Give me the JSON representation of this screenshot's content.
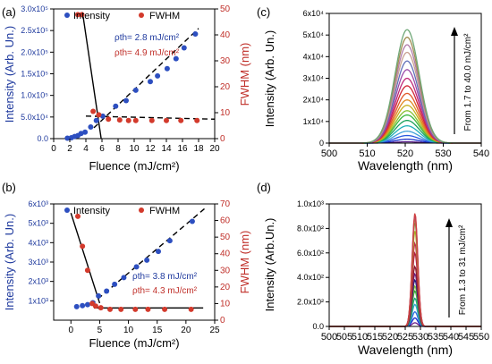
{
  "chart_data": [
    {
      "panel": "(a)",
      "type": "scatter",
      "x_label": "Fluence (mJ/cm²)",
      "x_ticks": [
        0,
        2,
        4,
        6,
        8,
        10,
        12,
        14,
        16,
        18,
        20
      ],
      "xlim": [
        0,
        20
      ],
      "y_left": {
        "label": "Intensity (Arb. Un.)",
        "ylim": [
          0,
          300000
        ],
        "ticks": [
          0,
          50000,
          100000,
          150000,
          200000,
          250000,
          300000
        ],
        "tick_labels": [
          "0.0",
          "5.0x10⁴",
          "1.0x10⁵",
          "1.5x10⁵",
          "2.0x10⁵",
          "2.5x10⁵",
          "3.0x10⁵"
        ],
        "color": "#1f3a9e"
      },
      "y_right": {
        "label": "FWHM (nm)",
        "ylim": [
          0,
          50
        ],
        "ticks": [
          0,
          10,
          20,
          30,
          40,
          50
        ],
        "tick_labels": [
          "0",
          "10",
          "20",
          "30",
          "40",
          "50"
        ],
        "color": "#c0302a"
      },
      "legend": [
        "Intensity",
        "FWHM"
      ],
      "legend_position": "top",
      "annotations": [
        {
          "text": "ρth= 2.8 mJ/cm²",
          "color": "#1f3a9e"
        },
        {
          "text": "ρth= 4.9 mJ/cm²",
          "color": "#c0302a"
        }
      ],
      "series": [
        {
          "name": "Intensity",
          "axis": "left",
          "marker": "circle",
          "color": "#2d4fc0",
          "x": [
            1.7,
            2.2,
            2.6,
            3.0,
            3.4,
            3.9,
            4.6,
            5.3,
            6.1,
            7.7,
            9.0,
            10.2,
            12.0,
            12.9,
            14.1,
            15.2,
            16.2,
            17.6
          ],
          "y": [
            1000,
            2000,
            5000,
            7000,
            12000,
            15000,
            27000,
            42000,
            52000,
            75000,
            88000,
            112000,
            132000,
            145000,
            162000,
            185000,
            210000,
            242000
          ]
        },
        {
          "name": "FWHM",
          "axis": "right",
          "marker": "circle",
          "color": "#d33a2c",
          "x": [
            3.0,
            3.5,
            4.9,
            5.6,
            6.8,
            8.2,
            9.3,
            10.2,
            12.2,
            14.0,
            15.8,
            17.8
          ],
          "y": [
            47.8,
            47.8,
            10.5,
            9.2,
            7.5,
            7.2,
            7.0,
            7.0,
            7.0,
            7.0,
            7.0,
            7.0
          ]
        }
      ],
      "fit_lines": [
        {
          "axis": "left",
          "style": "dashed",
          "x": [
            5.0,
            18.0
          ],
          "y": [
            25000,
            255000
          ]
        },
        {
          "axis": "left",
          "style": "solid",
          "x": [
            3.6,
            5.9
          ],
          "y": [
            290000,
            0
          ]
        },
        {
          "axis": "right",
          "style": "dashed",
          "x": [
            4.0,
            20.0
          ],
          "y": [
            8.7,
            7.5
          ]
        }
      ]
    },
    {
      "panel": "(b)",
      "type": "scatter",
      "x_label": "Fluence (mJ/cm²)",
      "x_ticks": [
        0,
        5,
        10,
        15,
        20,
        25
      ],
      "xlim": [
        -3,
        25
      ],
      "y_left": {
        "label": "Intensity (Arb. Un.)",
        "ylim": [
          0,
          6000
        ],
        "ticks": [
          1000,
          2000,
          3000,
          4000,
          5000,
          6000
        ],
        "tick_labels": [
          "1x10³",
          "2x10³",
          "3x10³",
          "4x10³",
          "5x10³",
          "6x10³"
        ],
        "color": "#1f3a9e"
      },
      "y_right": {
        "label": "FWHM (nm)",
        "ylim": [
          0,
          70
        ],
        "ticks": [
          0,
          10,
          20,
          30,
          40,
          50,
          60,
          70
        ],
        "tick_labels": [
          "0",
          "10",
          "20",
          "30",
          "40",
          "50",
          "60",
          "70"
        ],
        "color": "#c0302a"
      },
      "legend": [
        "Intensity",
        "FWHM"
      ],
      "legend_position": "top",
      "annotations": [
        {
          "text": "ρth= 3.8 mJ/cm²",
          "color": "#1f3a9e"
        },
        {
          "text": "ρth= 4.3 mJ/cm²",
          "color": "#c0302a"
        }
      ],
      "series": [
        {
          "name": "Intensity",
          "axis": "left",
          "marker": "circle",
          "color": "#2d4fc0",
          "x": [
            1.0,
            2.0,
            2.9,
            3.8,
            4.8,
            6.2,
            7.6,
            9.2,
            11.4,
            13.2,
            15.2,
            17.2,
            21.1
          ],
          "y": [
            700,
            750,
            800,
            900,
            1250,
            1500,
            1850,
            2200,
            2750,
            3100,
            3550,
            4100,
            5100
          ]
        },
        {
          "name": "FWHM",
          "axis": "right",
          "marker": "circle",
          "color": "#d33a2c",
          "x": [
            1.2,
            2.0,
            2.9,
            3.7,
            4.3,
            5.2,
            6.8,
            8.7,
            11.2,
            13.4,
            16.3,
            20.9
          ],
          "y": [
            62.5,
            44.5,
            30.0,
            10.0,
            8.5,
            7.5,
            6.5,
            6.5,
            6.5,
            6.5,
            6.5,
            6.5
          ]
        }
      ],
      "fit_lines": [
        {
          "axis": "left",
          "style": "dashed",
          "x": [
            3.5,
            23.5
          ],
          "y": [
            800,
            5820
          ]
        },
        {
          "axis": "left",
          "style": "solid",
          "x": [
            0.0,
            5.0
          ],
          "y": [
            5530,
            880
          ]
        },
        {
          "axis": "left",
          "style": "solid",
          "x": [
            4.0,
            23.0
          ],
          "y": [
            630,
            630
          ]
        }
      ]
    },
    {
      "panel": "(c)",
      "type": "line",
      "x_label": "Wavelength (nm)",
      "y_label": "Intensity (Arb. Un.)",
      "xlim": [
        500,
        540
      ],
      "x_ticks": [
        500,
        510,
        520,
        530,
        540
      ],
      "ylim": [
        0,
        60000
      ],
      "y_ticks": [
        0,
        10000,
        20000,
        30000,
        40000,
        50000,
        60000
      ],
      "y_tick_labels": [
        "0",
        "1x10⁴",
        "2x10⁴",
        "3x10⁴",
        "4x10⁴",
        "5x10⁴",
        "6x10⁴"
      ],
      "annotation": "From 1.7 to 40.0 mJ/cm²",
      "peak_center": 520.5,
      "peak_fwhm": 7.5,
      "series_peaks": [
        600,
        1800,
        3500,
        5500,
        8000,
        10500,
        13000,
        15000,
        17500,
        20000,
        23000,
        26500,
        30000,
        34000,
        38000,
        42000,
        45500,
        49000,
        52500
      ],
      "series_colors": [
        "#5a1e8c",
        "#1a2fc8",
        "#2858e0",
        "#40a0d8",
        "#20b0b8",
        "#1aa05a",
        "#3cb83c",
        "#86c030",
        "#c8b020",
        "#e08820",
        "#e05828",
        "#d02838",
        "#c02878",
        "#9a4aa8",
        "#6070b8",
        "#c8a090",
        "#b07aa8",
        "#a08c50",
        "#70a878"
      ]
    },
    {
      "panel": "(d)",
      "type": "line",
      "x_label": "Wavelength (nm)",
      "y_label": "Intensity (Arb.Un.)",
      "xlim": [
        500,
        550
      ],
      "x_ticks": [
        500,
        505,
        510,
        515,
        520,
        525,
        530,
        535,
        540,
        545,
        550
      ],
      "ylim": [
        0,
        1000
      ],
      "y_ticks": [
        0,
        200,
        400,
        600,
        800,
        1000
      ],
      "y_tick_labels": [
        "0.0",
        "2.0x10²",
        "4.0x10²",
        "6.0x10²",
        "8.0x10²",
        "1.0x10³"
      ],
      "annotation": "From 1.3 to 31 mJ/cm²",
      "peak_center": 528.2,
      "peak_fwhm": 2.2,
      "series_peaks": [
        30,
        70,
        120,
        180,
        230,
        290,
        330,
        380,
        430,
        490,
        600,
        680,
        780,
        850,
        880,
        910,
        925
      ],
      "series_colors": [
        "#6a1e8c",
        "#1a2fc8",
        "#2a6ae0",
        "#30a0d0",
        "#18a878",
        "#2aa83c",
        "#7ab830",
        "#1a1a7a",
        "#6a2080",
        "#8a1830",
        "#b02040",
        "#c03048",
        "#b0b020",
        "#7a8a30",
        "#d08830",
        "#8a3aa0",
        "#d04040"
      ]
    }
  ]
}
